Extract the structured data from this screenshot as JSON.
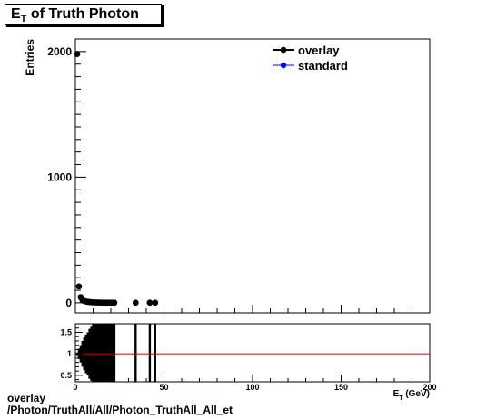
{
  "title": {
    "main": "E",
    "sub": "T",
    "rest": " of Truth Photon"
  },
  "footer": {
    "line1": "overlay",
    "line2": "/Photon/TruthAll/All/Photon_TruthAll_All_et"
  },
  "colors": {
    "overlay": "#000000",
    "standard": "#0000ff",
    "ratio_line": "#cc0000"
  },
  "chart_data": [
    {
      "type": "scatter",
      "ylabel": "Entries",
      "xlim": [
        0,
        200
      ],
      "ylim": [
        -80,
        2100
      ],
      "y_ticks": [
        0,
        1000,
        2000
      ],
      "y_tick_labels": [
        "0",
        "1000",
        "2000"
      ],
      "legend": {
        "placement": "top-right",
        "entries": [
          "overlay",
          "standard"
        ]
      },
      "series": [
        {
          "name": "overlay",
          "x": [
            1,
            2,
            3,
            4,
            5,
            6,
            7,
            8,
            9,
            10,
            11,
            12,
            13,
            14,
            15,
            16,
            17,
            18,
            19,
            20,
            21,
            22,
            34,
            42,
            45
          ],
          "y": [
            1980,
            130,
            45,
            22,
            15,
            10,
            8,
            6,
            5,
            4,
            3,
            3,
            2,
            2,
            2,
            1,
            1,
            1,
            1,
            1,
            1,
            1,
            1,
            1,
            1
          ]
        },
        {
          "name": "standard",
          "x": [],
          "y": []
        }
      ]
    },
    {
      "type": "scatter",
      "xlabel": "E_T (GeV)",
      "xlim": [
        0,
        200
      ],
      "ylim": [
        0.35,
        1.7
      ],
      "x_ticks": [
        0,
        50,
        100,
        150,
        200
      ],
      "x_tick_labels": [
        "0",
        "50",
        "100",
        "150",
        "200"
      ],
      "y_ticks": [
        0.5,
        1,
        1.5
      ],
      "y_tick_labels": [
        "0.5",
        "1",
        "1.5"
      ],
      "reference_line": 1,
      "ratio_points_x": [
        1,
        2,
        3,
        4,
        5,
        6,
        7,
        8,
        9,
        10,
        11,
        12,
        13,
        14,
        15,
        16,
        17,
        18,
        19,
        20,
        21,
        22,
        34,
        42,
        45
      ],
      "ratio_error_halfwidth": [
        0.03,
        0.12,
        0.2,
        0.3,
        0.38,
        0.45,
        0.5,
        0.58,
        0.63,
        0.7,
        0.75,
        0.8,
        0.85,
        0.9,
        0.9,
        0.9,
        0.9,
        0.9,
        0.9,
        0.9,
        0.9,
        0.9,
        0.9,
        0.9,
        0.9
      ]
    }
  ]
}
